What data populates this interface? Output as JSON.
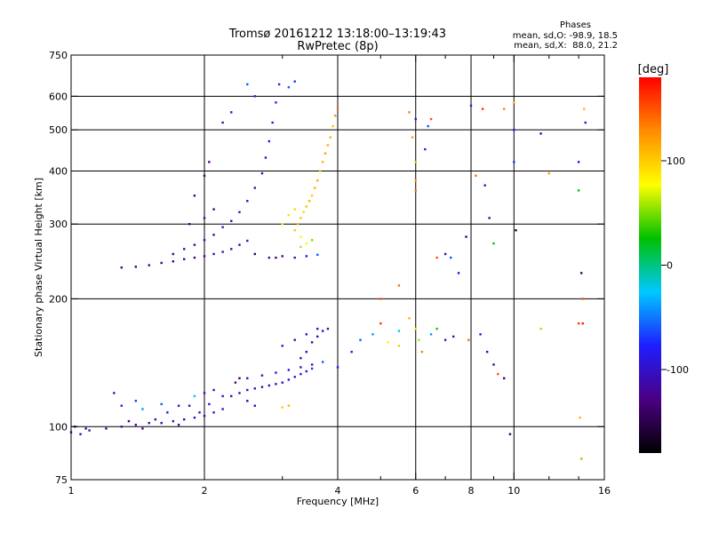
{
  "chart_data": {
    "type": "scatter",
    "title": "Tromsø 20161212 13:18:00–13:19:43",
    "subtitle": "RwPretec (8p)",
    "phase_stats": {
      "heading": "Phases",
      "line_o": "mean, sd,O: -98.9, 18.5",
      "line_x": "mean, sd,X:  88.0, 21.2"
    },
    "xlabel": "Frequency [MHz]",
    "ylabel": "Stationary phase Virtual Height [km]",
    "x_scale": "log",
    "y_scale": "log",
    "xlim": [
      1,
      16
    ],
    "ylim": [
      75,
      750
    ],
    "x_ticks": [
      1,
      2,
      4,
      6,
      8,
      10,
      16
    ],
    "x_tick_labels": [
      "1",
      "2",
      "4",
      "6",
      "8",
      "10",
      "16"
    ],
    "x_grid": [
      2,
      4,
      6,
      8,
      10
    ],
    "x_minor_ticks": [
      3,
      5,
      7,
      9,
      12,
      14
    ],
    "y_ticks": [
      75,
      100,
      200,
      300,
      400,
      500,
      600,
      750
    ],
    "y_tick_labels": [
      "75",
      "100",
      "200",
      "300",
      "400",
      "500",
      "600",
      "750"
    ],
    "y_grid": [
      100,
      200,
      300,
      400,
      500,
      600
    ],
    "grid": true,
    "colorbar": {
      "label": "[deg]",
      "range": [
        -180,
        180
      ],
      "ticks": [
        -100,
        0,
        100
      ],
      "tick_labels": [
        "-100",
        "0",
        "100"
      ],
      "colormap": [
        "#000000",
        "#4b0082",
        "#1e1eff",
        "#00c8ff",
        "#00c000",
        "#ffff00",
        "#ff8c00",
        "#ff0000"
      ]
    },
    "series": [
      {
        "points": [
          [
            1.0,
            97,
            -110
          ],
          [
            1.1,
            98,
            -105
          ],
          [
            1.2,
            99,
            -115
          ],
          [
            1.3,
            100,
            -112
          ],
          [
            1.4,
            101,
            -108
          ],
          [
            1.5,
            102,
            -110
          ],
          [
            1.6,
            102,
            -115
          ],
          [
            1.7,
            103,
            -108
          ],
          [
            1.8,
            104,
            -112
          ],
          [
            1.9,
            105,
            -105
          ],
          [
            2.0,
            106,
            -110
          ],
          [
            2.1,
            108,
            -100
          ],
          [
            2.2,
            110,
            -98
          ],
          [
            1.02,
            100,
            -120
          ],
          [
            1.05,
            96,
            -112
          ],
          [
            1.08,
            99,
            -118
          ],
          [
            1.35,
            103,
            -125
          ],
          [
            1.45,
            99,
            -120
          ],
          [
            1.55,
            104,
            -108
          ],
          [
            1.75,
            101,
            -115
          ],
          [
            1.95,
            108,
            -100
          ],
          [
            2.05,
            113,
            -95
          ],
          [
            1.3,
            112,
            -80
          ],
          [
            1.4,
            115,
            -70
          ],
          [
            1.6,
            113,
            -60
          ],
          [
            1.75,
            112,
            -90
          ],
          [
            1.9,
            118,
            -20
          ],
          [
            2.0,
            120,
            -100
          ],
          [
            2.1,
            122,
            -105
          ],
          [
            1.25,
            120,
            -110
          ],
          [
            1.45,
            110,
            -40
          ],
          [
            1.65,
            108,
            -90
          ],
          [
            1.85,
            112,
            -110
          ],
          [
            2.2,
            118,
            -95
          ]
        ]
      },
      {
        "points": [
          [
            2.3,
            118,
            -100
          ],
          [
            2.4,
            120,
            -110
          ],
          [
            2.5,
            122,
            -105
          ],
          [
            2.6,
            123,
            -95
          ],
          [
            2.7,
            124,
            -100
          ],
          [
            2.8,
            125,
            -110
          ],
          [
            2.9,
            126,
            -105
          ],
          [
            3.0,
            127,
            -100
          ],
          [
            3.1,
            129,
            -95
          ],
          [
            3.2,
            131,
            -85
          ],
          [
            3.3,
            133,
            -80
          ],
          [
            3.4,
            135,
            -90
          ],
          [
            3.5,
            137,
            -70
          ],
          [
            2.35,
            127,
            -120
          ],
          [
            2.5,
            130,
            -110
          ],
          [
            2.7,
            132,
            -100
          ],
          [
            2.9,
            134,
            -95
          ],
          [
            3.1,
            136,
            -90
          ],
          [
            3.3,
            138,
            -100
          ],
          [
            3.5,
            140,
            -80
          ],
          [
            3.7,
            142,
            -60
          ],
          [
            3.3,
            145,
            -110
          ],
          [
            3.4,
            150,
            -105
          ],
          [
            3.5,
            158,
            -120
          ],
          [
            3.6,
            163,
            -110
          ],
          [
            3.7,
            168,
            -100
          ],
          [
            3.8,
            170,
            -115
          ],
          [
            3.0,
            155,
            -95
          ],
          [
            3.2,
            160,
            -120
          ],
          [
            3.4,
            165,
            -100
          ],
          [
            3.6,
            170,
            -110
          ],
          [
            2.4,
            130,
            -140
          ],
          [
            2.5,
            115,
            -130
          ],
          [
            2.6,
            112,
            -100
          ],
          [
            3.0,
            111,
            100
          ],
          [
            3.1,
            112,
            110
          ],
          [
            4.0,
            138,
            -80
          ],
          [
            4.3,
            150,
            -90
          ],
          [
            4.5,
            160,
            -60
          ],
          [
            4.8,
            165,
            -40
          ]
        ]
      },
      {
        "points": [
          [
            1.3,
            237,
            -130
          ],
          [
            1.4,
            238,
            -140
          ],
          [
            1.5,
            240,
            -120
          ],
          [
            1.6,
            243,
            -135
          ],
          [
            1.7,
            245,
            -130
          ],
          [
            1.8,
            248,
            -125
          ],
          [
            1.9,
            250,
            -130
          ],
          [
            2.0,
            252,
            -120
          ],
          [
            2.1,
            255,
            -115
          ],
          [
            2.2,
            258,
            -110
          ],
          [
            2.3,
            262,
            -100
          ],
          [
            2.4,
            268,
            -110
          ],
          [
            2.5,
            274,
            -100
          ],
          [
            1.7,
            255,
            -130
          ],
          [
            1.8,
            262,
            -120
          ],
          [
            1.9,
            268,
            -125
          ],
          [
            2.0,
            275,
            -110
          ],
          [
            2.1,
            283,
            -115
          ],
          [
            2.2,
            295,
            -100
          ],
          [
            2.3,
            305,
            -110
          ],
          [
            2.4,
            320,
            -100
          ],
          [
            2.5,
            340,
            -105
          ],
          [
            2.6,
            365,
            -110
          ],
          [
            2.7,
            395,
            -100
          ],
          [
            2.75,
            430,
            -95
          ],
          [
            2.8,
            470,
            -90
          ],
          [
            2.85,
            520,
            -85
          ],
          [
            2.9,
            580,
            -80
          ],
          [
            2.95,
            640,
            -75
          ],
          [
            1.85,
            300,
            -125
          ],
          [
            2.0,
            310,
            -120
          ],
          [
            2.1,
            325,
            -130
          ],
          [
            1.9,
            350,
            -130
          ],
          [
            2.0,
            390,
            -140
          ],
          [
            2.05,
            420,
            -130
          ],
          [
            2.6,
            600,
            -80
          ],
          [
            2.5,
            640,
            -60
          ],
          [
            2.3,
            550,
            -90
          ],
          [
            2.2,
            520,
            -110
          ],
          [
            2.8,
            250,
            -110
          ],
          [
            3.0,
            252,
            -120
          ],
          [
            3.2,
            250,
            -100
          ],
          [
            3.4,
            252,
            -90
          ],
          [
            3.6,
            254,
            -60
          ],
          [
            3.1,
            630,
            -60
          ],
          [
            3.2,
            650,
            -70
          ],
          [
            2.9,
            250,
            -130
          ],
          [
            2.6,
            255,
            -140
          ]
        ]
      },
      {
        "points": [
          [
            3.2,
            290,
            100
          ],
          [
            3.25,
            300,
            110
          ],
          [
            3.3,
            310,
            105
          ],
          [
            3.35,
            320,
            95
          ],
          [
            3.4,
            330,
            105
          ],
          [
            3.45,
            340,
            110
          ],
          [
            3.5,
            350,
            100
          ],
          [
            3.55,
            365,
            110
          ],
          [
            3.6,
            380,
            115
          ],
          [
            3.65,
            400,
            105
          ],
          [
            3.7,
            420,
            110
          ],
          [
            3.75,
            440,
            120
          ],
          [
            3.8,
            460,
            115
          ],
          [
            3.85,
            480,
            110
          ],
          [
            3.9,
            510,
            105
          ],
          [
            3.95,
            540,
            130
          ],
          [
            4.0,
            560,
            140
          ],
          [
            3.1,
            315,
            90
          ],
          [
            3.2,
            325,
            95
          ],
          [
            3.3,
            280,
            80
          ],
          [
            3.4,
            270,
            75
          ],
          [
            3.0,
            300,
            85
          ],
          [
            3.3,
            265,
            60
          ],
          [
            3.5,
            275,
            50
          ]
        ]
      },
      {
        "points": [
          [
            5.0,
            200,
            150
          ],
          [
            5.5,
            215,
            140
          ],
          [
            5.8,
            550,
            130
          ],
          [
            5.9,
            480,
            120
          ],
          [
            6.0,
            380,
            125
          ],
          [
            6.0,
            360,
            140
          ],
          [
            6.0,
            530,
            -110
          ],
          [
            6.0,
            420,
            60
          ],
          [
            6.3,
            450,
            -80
          ],
          [
            6.4,
            510,
            -60
          ],
          [
            6.5,
            530,
            150
          ],
          [
            6.7,
            250,
            150
          ],
          [
            7.0,
            255,
            -120
          ],
          [
            7.2,
            250,
            -60
          ],
          [
            7.5,
            230,
            -100
          ],
          [
            7.8,
            280,
            -140
          ],
          [
            8.0,
            570,
            -90
          ],
          [
            8.2,
            390,
            140
          ],
          [
            8.5,
            560,
            160
          ],
          [
            8.6,
            370,
            -100
          ],
          [
            8.8,
            310,
            -120
          ],
          [
            9.0,
            270,
            20
          ],
          [
            9.5,
            560,
            130
          ],
          [
            10.0,
            500,
            -80
          ],
          [
            10.0,
            420,
            -70
          ],
          [
            10.1,
            290,
            -160
          ],
          [
            11.5,
            490,
            -120
          ],
          [
            12.0,
            395,
            120
          ],
          [
            14.0,
            420,
            -100
          ],
          [
            14.0,
            360,
            20
          ],
          [
            14.2,
            230,
            -140
          ],
          [
            14.3,
            200,
            150
          ],
          [
            14.3,
            175,
            170
          ],
          [
            14.4,
            560,
            110
          ],
          [
            14.5,
            520,
            -90
          ],
          [
            10.0,
            580,
            110
          ],
          [
            6.0,
            170,
            90
          ],
          [
            6.1,
            160,
            60
          ],
          [
            6.5,
            165,
            -40
          ],
          [
            6.7,
            170,
            30
          ],
          [
            7.0,
            160,
            -90
          ],
          [
            7.3,
            163,
            -100
          ],
          [
            7.9,
            160,
            140
          ],
          [
            8.4,
            165,
            -80
          ],
          [
            8.7,
            150,
            -110
          ],
          [
            9.0,
            140,
            -120
          ],
          [
            9.2,
            133,
            150
          ],
          [
            9.5,
            130,
            -140
          ],
          [
            9.8,
            96,
            -140
          ],
          [
            5.0,
            175,
            160
          ],
          [
            5.5,
            168,
            -20
          ],
          [
            5.8,
            180,
            110
          ],
          [
            6.2,
            150,
            130
          ],
          [
            11.5,
            170,
            60
          ],
          [
            14.0,
            175,
            160
          ],
          [
            14.1,
            105,
            110
          ],
          [
            14.2,
            84,
            50
          ],
          [
            5.2,
            158,
            80
          ],
          [
            5.5,
            155,
            100
          ]
        ]
      }
    ]
  }
}
